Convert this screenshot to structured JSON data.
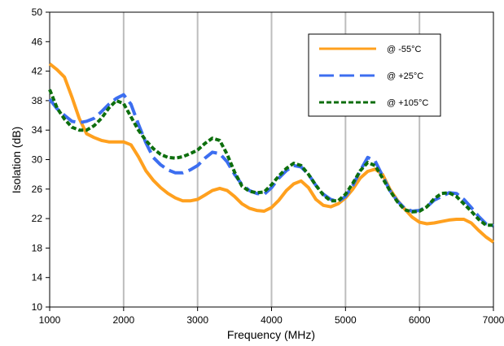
{
  "chart_data": {
    "type": "line",
    "title": "",
    "xlabel": "Frequency (MHz)",
    "ylabel": "Isolation (dB)",
    "xlim": [
      1000,
      7000
    ],
    "ylim": [
      10,
      50
    ],
    "xticks": [
      1000,
      2000,
      3000,
      4000,
      5000,
      6000,
      7000
    ],
    "yticks": [
      10,
      14,
      18,
      22,
      26,
      30,
      34,
      38,
      42,
      46,
      50
    ],
    "grid": "vertical",
    "legend_position": "top-right",
    "series": [
      {
        "name": "@ -55°C",
        "color": "#ffa01e",
        "dash": "solid",
        "x": [
          1000,
          1100,
          1200,
          1300,
          1400,
          1500,
          1600,
          1700,
          1800,
          1900,
          2000,
          2100,
          2200,
          2300,
          2400,
          2500,
          2600,
          2700,
          2800,
          2900,
          3000,
          3100,
          3200,
          3300,
          3400,
          3500,
          3600,
          3700,
          3800,
          3900,
          4000,
          4100,
          4200,
          4300,
          4400,
          4500,
          4600,
          4700,
          4800,
          4900,
          5000,
          5100,
          5200,
          5300,
          5400,
          5500,
          5600,
          5700,
          5800,
          5900,
          6000,
          6100,
          6200,
          6300,
          6400,
          6500,
          6600,
          6700,
          6800,
          6900,
          7000
        ],
        "y": [
          43.0,
          42.2,
          41.2,
          38.5,
          35.6,
          33.5,
          33.0,
          32.6,
          32.4,
          32.4,
          32.4,
          32.0,
          30.4,
          28.5,
          27.2,
          26.2,
          25.4,
          24.8,
          24.4,
          24.4,
          24.6,
          25.2,
          25.8,
          26.1,
          25.8,
          25.0,
          24.0,
          23.4,
          23.1,
          23.0,
          23.5,
          24.5,
          25.8,
          26.7,
          27.1,
          26.2,
          24.6,
          23.8,
          23.6,
          24.0,
          24.8,
          26.0,
          27.5,
          28.4,
          28.7,
          28.0,
          26.0,
          24.5,
          23.3,
          22.2,
          21.5,
          21.3,
          21.4,
          21.6,
          21.8,
          21.9,
          21.9,
          21.4,
          20.4,
          19.5,
          18.8
        ]
      },
      {
        "name": "@ +25°C",
        "color": "#3c6ef0",
        "dash": "long-dash",
        "x": [
          1000,
          1100,
          1200,
          1300,
          1400,
          1500,
          1600,
          1700,
          1800,
          1900,
          2000,
          2100,
          2200,
          2300,
          2400,
          2500,
          2600,
          2700,
          2800,
          2900,
          3000,
          3100,
          3200,
          3300,
          3400,
          3500,
          3600,
          3700,
          3800,
          3900,
          4000,
          4100,
          4200,
          4300,
          4400,
          4500,
          4600,
          4700,
          4800,
          4900,
          5000,
          5100,
          5200,
          5300,
          5400,
          5500,
          5600,
          5700,
          5800,
          5900,
          6000,
          6100,
          6200,
          6300,
          6400,
          6500,
          6600,
          6700,
          6800,
          6900,
          7000
        ],
        "y": [
          38.2,
          36.9,
          36.0,
          35.2,
          35.0,
          35.2,
          35.6,
          36.5,
          37.5,
          38.3,
          38.8,
          37.5,
          34.8,
          32.3,
          30.3,
          29.3,
          28.6,
          28.2,
          28.2,
          28.6,
          29.2,
          30.2,
          31.0,
          30.8,
          29.7,
          28.0,
          26.6,
          25.8,
          25.4,
          25.3,
          26.2,
          27.5,
          28.5,
          29.2,
          29.0,
          28.0,
          26.5,
          25.3,
          24.6,
          24.3,
          25.0,
          26.5,
          28.5,
          30.3,
          29.8,
          27.8,
          25.8,
          24.4,
          23.4,
          23.0,
          23.1,
          23.6,
          24.5,
          25.0,
          25.5,
          25.4,
          24.6,
          23.5,
          22.3,
          21.3,
          21.0
        ]
      },
      {
        "name": "@ +105°C",
        "color": "#0d6e0d",
        "dash": "short-dash",
        "x": [
          1000,
          1100,
          1200,
          1300,
          1400,
          1500,
          1600,
          1700,
          1800,
          1900,
          2000,
          2100,
          2200,
          2300,
          2400,
          2500,
          2600,
          2700,
          2800,
          2900,
          3000,
          3100,
          3200,
          3300,
          3400,
          3500,
          3600,
          3700,
          3800,
          3900,
          4000,
          4100,
          4200,
          4300,
          4400,
          4500,
          4600,
          4700,
          4800,
          4900,
          5000,
          5100,
          5200,
          5300,
          5400,
          5500,
          5600,
          5700,
          5800,
          5900,
          6000,
          6100,
          6200,
          6300,
          6400,
          6500,
          6600,
          6700,
          6800,
          6900,
          7000
        ],
        "y": [
          39.5,
          37.0,
          35.5,
          34.4,
          34.0,
          34.0,
          34.6,
          35.6,
          37.0,
          38.0,
          37.6,
          35.8,
          34.0,
          32.6,
          31.5,
          30.7,
          30.3,
          30.2,
          30.4,
          30.8,
          31.3,
          32.2,
          32.9,
          32.6,
          30.7,
          28.3,
          26.4,
          25.7,
          25.5,
          25.6,
          26.6,
          27.8,
          28.8,
          29.5,
          29.2,
          28.0,
          26.5,
          25.2,
          24.4,
          24.4,
          25.3,
          26.8,
          28.5,
          29.6,
          29.2,
          27.5,
          25.8,
          24.3,
          23.2,
          22.9,
          23.0,
          23.6,
          24.7,
          25.4,
          25.5,
          25.0,
          24.0,
          23.0,
          21.9,
          21.1,
          21.1
        ]
      }
    ]
  }
}
